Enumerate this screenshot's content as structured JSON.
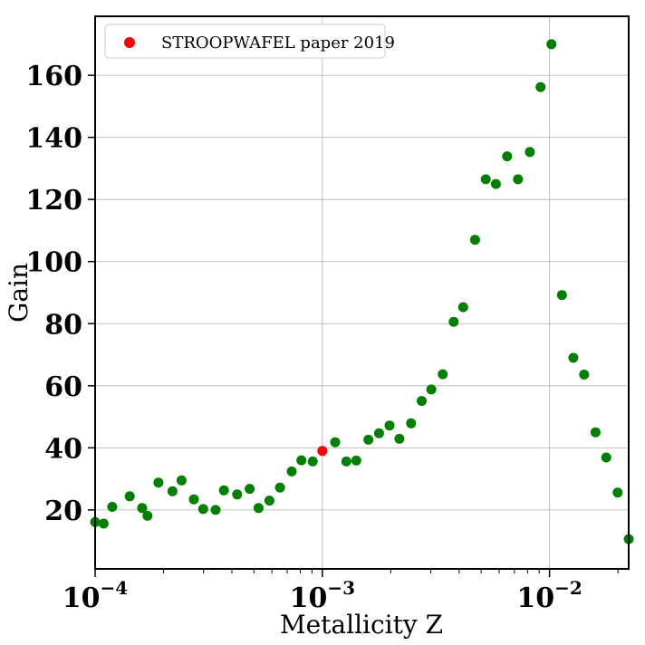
{
  "chart_data": {
    "type": "scatter",
    "xlabel": "Metallicity Z",
    "ylabel": "Gain",
    "xscale": "log",
    "xlim": [
      0.0001,
      0.0223
    ],
    "ylim": [
      1,
      179
    ],
    "xticks": [
      {
        "value": 0.0001,
        "base": "10",
        "exp": "−4"
      },
      {
        "value": 0.001,
        "base": "10",
        "exp": "−3"
      },
      {
        "value": 0.01,
        "base": "10",
        "exp": "−2"
      }
    ],
    "yticks": [
      20,
      40,
      60,
      80,
      100,
      120,
      140,
      160
    ],
    "grid": true,
    "legend_placement": "top-left",
    "series": [
      {
        "color": "#008000",
        "points": [
          [
            0.0001,
            16.1
          ],
          [
            0.000109,
            15.6
          ],
          [
            0.000119,
            21.0
          ],
          [
            0.000142,
            24.4
          ],
          [
            0.000161,
            20.6
          ],
          [
            0.00017,
            18.1
          ],
          [
            0.00019,
            28.8
          ],
          [
            0.000219,
            26.0
          ],
          [
            0.00024,
            29.5
          ],
          [
            0.000272,
            23.4
          ],
          [
            0.000299,
            20.3
          ],
          [
            0.000339,
            20.0
          ],
          [
            0.000369,
            26.3
          ],
          [
            0.000422,
            25.0
          ],
          [
            0.000479,
            26.8
          ],
          [
            0.000524,
            20.6
          ],
          [
            0.000585,
            23.0
          ],
          [
            0.000651,
            27.2
          ],
          [
            0.000733,
            32.4
          ],
          [
            0.000809,
            36.0
          ],
          [
            0.000907,
            35.6
          ],
          [
            0.001139,
            41.8
          ],
          [
            0.001275,
            35.6
          ],
          [
            0.001411,
            35.9
          ],
          [
            0.001595,
            42.6
          ],
          [
            0.001777,
            44.7
          ],
          [
            0.001975,
            47.2
          ],
          [
            0.002183,
            42.9
          ],
          [
            0.002458,
            47.9
          ],
          [
            0.002737,
            55.1
          ],
          [
            0.003016,
            58.8
          ],
          [
            0.003386,
            63.7
          ],
          [
            0.003784,
            80.6
          ],
          [
            0.004169,
            85.3
          ],
          [
            0.004699,
            107.0
          ],
          [
            0.005236,
            126.5
          ],
          [
            0.005804,
            125.0
          ],
          [
            0.006504,
            133.9
          ],
          [
            0.007266,
            126.5
          ],
          [
            0.00819,
            135.3
          ],
          [
            0.009132,
            156.2
          ],
          [
            0.010195,
            170.0
          ],
          [
            0.011337,
            89.2
          ],
          [
            0.012721,
            69.0
          ],
          [
            0.014191,
            63.6
          ],
          [
            0.015943,
            45.0
          ],
          [
            0.017756,
            36.9
          ],
          [
            0.019945,
            25.6
          ],
          [
            0.0223,
            10.6
          ]
        ]
      },
      {
        "name": "STROOPWAFEL paper 2019",
        "color": "#ff0000",
        "points": [
          [
            0.001,
            39.0
          ]
        ]
      }
    ]
  }
}
